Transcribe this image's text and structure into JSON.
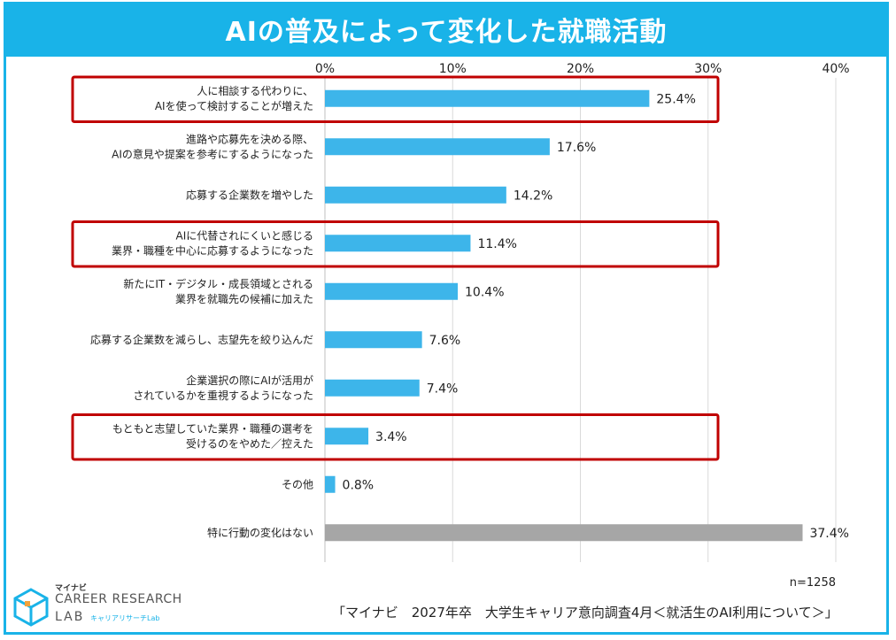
{
  "title": "AIの普及によって変化した就職活動",
  "chart_data": {
    "type": "bar",
    "orientation": "horizontal",
    "x_ticks": [
      "0%",
      "10%",
      "20%",
      "30%",
      "40%"
    ],
    "xlim": [
      0,
      40
    ],
    "categories": [
      [
        "人に相談する代わりに、",
        "AIを使って検討することが増えた"
      ],
      [
        "進路や応募先を決める際、",
        "AIの意見や提案を参考にするようになった"
      ],
      [
        "応募する企業数を増やした"
      ],
      [
        "AIに代替されにくいと感じる",
        "業界・職種を中心に応募するようになった"
      ],
      [
        "新たにIT・デジタル・成長領域とされる",
        "業界を就職先の候補に加えた"
      ],
      [
        "応募する企業数を減らし、志望先を絞り込んだ"
      ],
      [
        "企業選択の際にAIが活用が",
        "されているかを重視するようになった"
      ],
      [
        "もともと志望していた業界・職種の選考を",
        "受けるのをやめた／控えた"
      ],
      [
        "その他"
      ],
      [
        "特に行動の変化はない"
      ]
    ],
    "values": [
      25.4,
      17.6,
      14.2,
      11.4,
      10.4,
      7.6,
      7.4,
      3.4,
      0.8,
      37.4
    ],
    "value_labels": [
      "25.4%",
      "17.6%",
      "14.2%",
      "11.4%",
      "10.4%",
      "7.6%",
      "7.4%",
      "3.4%",
      "0.8%",
      "37.4%"
    ],
    "bar_colors": [
      "#3db5ea",
      "#3db5ea",
      "#3db5ea",
      "#3db5ea",
      "#3db5ea",
      "#3db5ea",
      "#3db5ea",
      "#3db5ea",
      "#3db5ea",
      "#a6a6a6"
    ],
    "highlighted": [
      0,
      3,
      7
    ],
    "highlight_color": "#c00000",
    "grid": true
  },
  "footer": {
    "n": "n=1258",
    "source": "「マイナビ　2027年卒　大学生キャリア意向調査4月＜就活生のAI利用について＞」"
  },
  "logo": {
    "small": "マイナビ",
    "main": "CAREER RESEARCH",
    "lab": "LAB",
    "sub": "キャリアリサーチLab"
  },
  "colors": {
    "accent": "#19b3e8",
    "bar": "#3db5ea",
    "bar_other": "#a6a6a6",
    "highlight": "#c00000"
  }
}
